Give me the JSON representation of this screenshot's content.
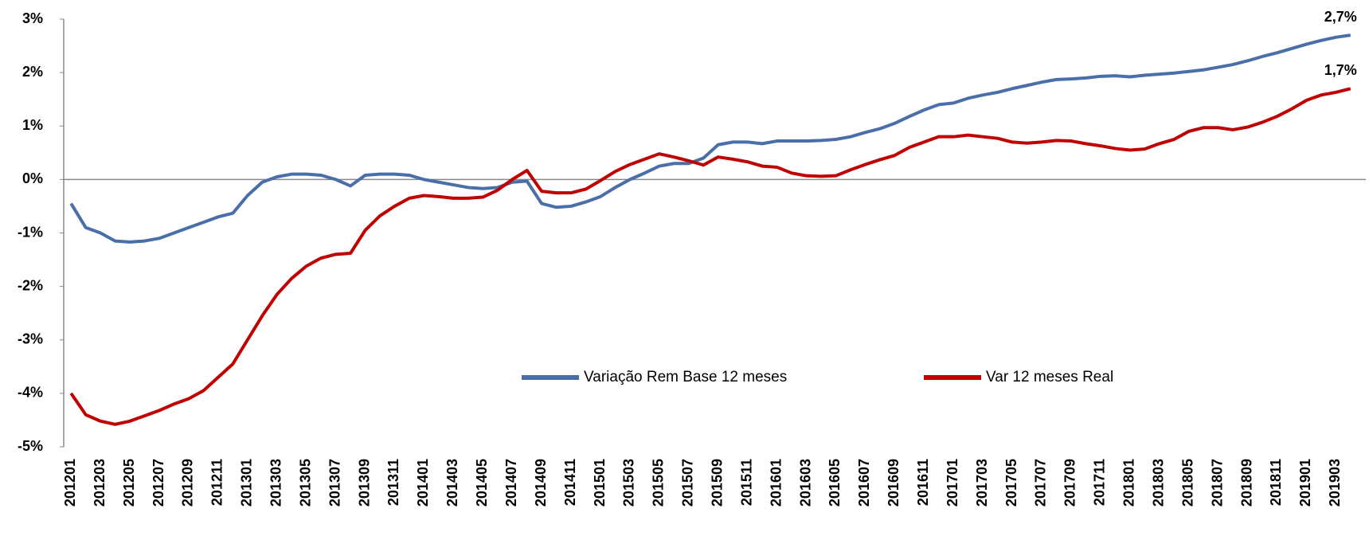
{
  "chart_data": {
    "type": "line",
    "categories": [
      "201201",
      null,
      "201203",
      null,
      "201205",
      null,
      "201207",
      null,
      "201209",
      null,
      "201211",
      null,
      "201301",
      null,
      "201303",
      null,
      "201305",
      null,
      "201307",
      null,
      "201309",
      null,
      "201311",
      null,
      "201401",
      null,
      "201403",
      null,
      "201405",
      null,
      "201407",
      null,
      "201409",
      null,
      "201411",
      null,
      "201501",
      null,
      "201503",
      null,
      "201505",
      null,
      "201507",
      null,
      "201509",
      null,
      "201511",
      null,
      "201601",
      null,
      "201603",
      null,
      "201605",
      null,
      "201607",
      null,
      "201609",
      null,
      "201611",
      null,
      "201701",
      null,
      "201703",
      null,
      "201705",
      null,
      "201707",
      null,
      "201709",
      null,
      "201711",
      null,
      "201801",
      null,
      "201803",
      null,
      "201805",
      null,
      "201807",
      null,
      "201809",
      null,
      "201811",
      null,
      "201901",
      null,
      "201903",
      null
    ],
    "series": [
      {
        "name": "Variação Rem Base 12 meses",
        "color": "#4a6ea8",
        "values": [
          -0.45,
          -0.9,
          -1.0,
          -1.15,
          -1.17,
          -1.15,
          -1.1,
          -1.0,
          -0.9,
          -0.8,
          -0.7,
          -0.63,
          -0.3,
          -0.05,
          0.05,
          0.1,
          0.1,
          0.08,
          0.0,
          -0.12,
          0.08,
          0.1,
          0.1,
          0.08,
          0.0,
          -0.05,
          -0.1,
          -0.15,
          -0.17,
          -0.15,
          -0.05,
          -0.03,
          -0.45,
          -0.52,
          -0.5,
          -0.42,
          -0.32,
          -0.15,
          0.0,
          0.12,
          0.25,
          0.3,
          0.3,
          0.4,
          0.65,
          0.7,
          0.7,
          0.67,
          0.72,
          0.72,
          0.72,
          0.73,
          0.75,
          0.8,
          0.88,
          0.95,
          1.05,
          1.18,
          1.3,
          1.4,
          1.43,
          1.52,
          1.58,
          1.63,
          1.7,
          1.76,
          1.82,
          1.87,
          1.88,
          1.9,
          1.93,
          1.94,
          1.92,
          1.95,
          1.97,
          1.99,
          2.02,
          2.05,
          2.1,
          2.15,
          2.22,
          2.3,
          2.37,
          2.45,
          2.53,
          2.6,
          2.66,
          2.7
        ],
        "value_labels": [
          null,
          null,
          null,
          null,
          null,
          null,
          null,
          null,
          null,
          null,
          null,
          null,
          null,
          null,
          null,
          null,
          null,
          null,
          null,
          null,
          null,
          null,
          null,
          null,
          null,
          null,
          null,
          null,
          null,
          null,
          null,
          null,
          null,
          null,
          null,
          null,
          null,
          null,
          null,
          null,
          null,
          null,
          null,
          null,
          null,
          null,
          null,
          null,
          null,
          null,
          null,
          null,
          null,
          null,
          null,
          null,
          null,
          null,
          null,
          null,
          null,
          null,
          null,
          null,
          null,
          null,
          null,
          null,
          null,
          null,
          null,
          null,
          null,
          null,
          null,
          null,
          null,
          null,
          null,
          null,
          null,
          null,
          null,
          null,
          null,
          null,
          null,
          "2,7%"
        ]
      },
      {
        "name": "Var 12 meses Real",
        "color": "#c00000",
        "values": [
          -4.0,
          -4.4,
          -4.52,
          -4.58,
          -4.52,
          -4.42,
          -4.32,
          -4.2,
          -4.1,
          -3.95,
          -3.7,
          -3.45,
          -3.0,
          -2.55,
          -2.15,
          -1.85,
          -1.62,
          -1.47,
          -1.4,
          -1.38,
          -0.95,
          -0.68,
          -0.5,
          -0.35,
          -0.3,
          -0.32,
          -0.35,
          -0.35,
          -0.33,
          -0.2,
          0.0,
          0.17,
          -0.22,
          -0.25,
          -0.25,
          -0.18,
          -0.02,
          0.15,
          0.28,
          0.38,
          0.48,
          0.42,
          0.35,
          0.27,
          0.42,
          0.38,
          0.33,
          0.25,
          0.23,
          0.12,
          0.07,
          0.06,
          0.07,
          0.18,
          0.28,
          0.37,
          0.45,
          0.6,
          0.7,
          0.8,
          0.8,
          0.83,
          0.8,
          0.77,
          0.7,
          0.68,
          0.7,
          0.73,
          0.72,
          0.67,
          0.63,
          0.58,
          0.55,
          0.57,
          0.67,
          0.75,
          0.9,
          0.97,
          0.97,
          0.93,
          0.98,
          1.07,
          1.18,
          1.32,
          1.48,
          1.58,
          1.63,
          1.7
        ],
        "value_labels": [
          null,
          null,
          null,
          null,
          null,
          null,
          null,
          null,
          null,
          null,
          null,
          null,
          null,
          null,
          null,
          null,
          null,
          null,
          null,
          null,
          null,
          null,
          null,
          null,
          null,
          null,
          null,
          null,
          null,
          null,
          null,
          null,
          null,
          null,
          null,
          null,
          null,
          null,
          null,
          null,
          null,
          null,
          null,
          null,
          null,
          null,
          null,
          null,
          null,
          null,
          null,
          null,
          null,
          null,
          null,
          null,
          null,
          null,
          null,
          null,
          null,
          null,
          null,
          null,
          null,
          null,
          null,
          null,
          null,
          null,
          null,
          null,
          null,
          null,
          null,
          null,
          null,
          null,
          null,
          null,
          null,
          null,
          null,
          null,
          null,
          null,
          null,
          "1,7%"
        ],
        "label_color": "#ff1a1a"
      }
    ],
    "ylim": [
      -5,
      3
    ],
    "yticks": [
      {
        "value": -5,
        "label": "-5%"
      },
      {
        "value": -4,
        "label": "-4%"
      },
      {
        "value": -3,
        "label": "-3%"
      },
      {
        "value": -2,
        "label": "-2%"
      },
      {
        "value": -1,
        "label": "-1%"
      },
      {
        "value": 0,
        "label": "0%"
      },
      {
        "value": 1,
        "label": "1%"
      },
      {
        "value": 2,
        "label": "2%"
      },
      {
        "value": 3,
        "label": "3%"
      }
    ],
    "grid": false,
    "legend": "bottom"
  }
}
